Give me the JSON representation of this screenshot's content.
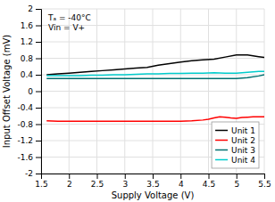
{
  "chart_data": {
    "type": "line",
    "x_label": "Supply Voltage (V)",
    "y_label": "Input Offset Voltage (mV)",
    "annotations": [
      "Tₐ = -40°C",
      "Vin = V+"
    ],
    "xlim": [
      1.5,
      5.5
    ],
    "ylim": [
      -2.0,
      2.0
    ],
    "xticks": [
      1.5,
      2,
      2.5,
      3,
      3.5,
      4,
      4.5,
      5,
      5.5
    ],
    "yticks": [
      -2,
      -1.6,
      -1.2,
      -0.8,
      -0.4,
      0,
      0.4,
      0.8,
      1.2,
      1.6,
      2
    ],
    "grid": true,
    "legend": "lower right",
    "series": [
      {
        "name": "Unit 1",
        "color": "#000000",
        "x": [
          1.6,
          1.8,
          2.0,
          2.2,
          2.4,
          2.6,
          2.8,
          3.0,
          3.2,
          3.4,
          3.6,
          3.8,
          4.0,
          4.2,
          4.4,
          4.6,
          4.8,
          5.0,
          5.2,
          5.4,
          5.5
        ],
        "values": [
          0.4,
          0.42,
          0.44,
          0.46,
          0.48,
          0.5,
          0.52,
          0.54,
          0.56,
          0.58,
          0.63,
          0.67,
          0.71,
          0.74,
          0.76,
          0.78,
          0.83,
          0.88,
          0.88,
          0.84,
          0.82
        ]
      },
      {
        "name": "Unit 2",
        "color": "#ff0000",
        "x": [
          1.6,
          1.8,
          2.0,
          2.2,
          2.4,
          2.6,
          2.8,
          3.0,
          3.2,
          3.4,
          3.6,
          3.8,
          4.0,
          4.2,
          4.4,
          4.5,
          4.6,
          4.7,
          4.8,
          4.9,
          5.0,
          5.1,
          5.2,
          5.3,
          5.4,
          5.5
        ],
        "values": [
          -0.72,
          -0.73,
          -0.73,
          -0.73,
          -0.73,
          -0.73,
          -0.73,
          -0.73,
          -0.73,
          -0.73,
          -0.73,
          -0.73,
          -0.73,
          -0.72,
          -0.7,
          -0.68,
          -0.65,
          -0.62,
          -0.63,
          -0.65,
          -0.66,
          -0.64,
          -0.63,
          -0.62,
          -0.62,
          -0.62
        ]
      },
      {
        "name": "Unit 3",
        "color": "#007070",
        "x": [
          1.6,
          1.8,
          2.0,
          2.2,
          2.4,
          2.6,
          2.8,
          3.0,
          3.2,
          3.4,
          3.6,
          3.8,
          4.0,
          4.2,
          4.4,
          4.6,
          4.8,
          5.0,
          5.2,
          5.4,
          5.5
        ],
        "values": [
          0.31,
          0.31,
          0.31,
          0.31,
          0.31,
          0.31,
          0.31,
          0.31,
          0.31,
          0.31,
          0.31,
          0.31,
          0.31,
          0.31,
          0.31,
          0.31,
          0.31,
          0.31,
          0.33,
          0.37,
          0.4
        ]
      },
      {
        "name": "Unit 4",
        "color": "#00cccc",
        "x": [
          1.6,
          1.8,
          2.0,
          2.2,
          2.4,
          2.6,
          2.8,
          3.0,
          3.2,
          3.4,
          3.6,
          3.8,
          4.0,
          4.2,
          4.4,
          4.6,
          4.8,
          5.0,
          5.2,
          5.4,
          5.5
        ],
        "values": [
          0.38,
          0.38,
          0.38,
          0.38,
          0.39,
          0.39,
          0.4,
          0.4,
          0.41,
          0.42,
          0.42,
          0.43,
          0.43,
          0.44,
          0.44,
          0.45,
          0.44,
          0.44,
          0.46,
          0.48,
          0.48
        ]
      }
    ]
  }
}
